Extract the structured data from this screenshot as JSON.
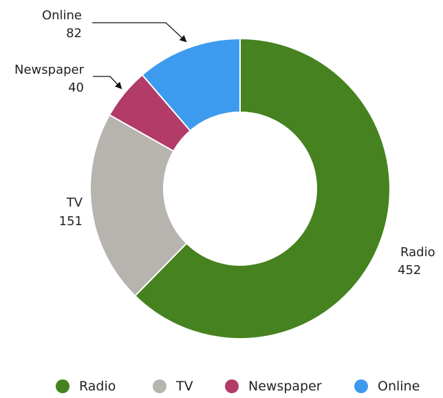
{
  "chart_data": {
    "type": "pie",
    "donut": true,
    "categories": [
      "Radio",
      "TV",
      "Newspaper",
      "Online"
    ],
    "values": [
      452,
      151,
      40,
      82
    ],
    "colors": [
      "#46821f",
      "#b7b4b0",
      "#b23b67",
      "#3d9bef"
    ],
    "title": "",
    "legend_position": "bottom"
  }
}
